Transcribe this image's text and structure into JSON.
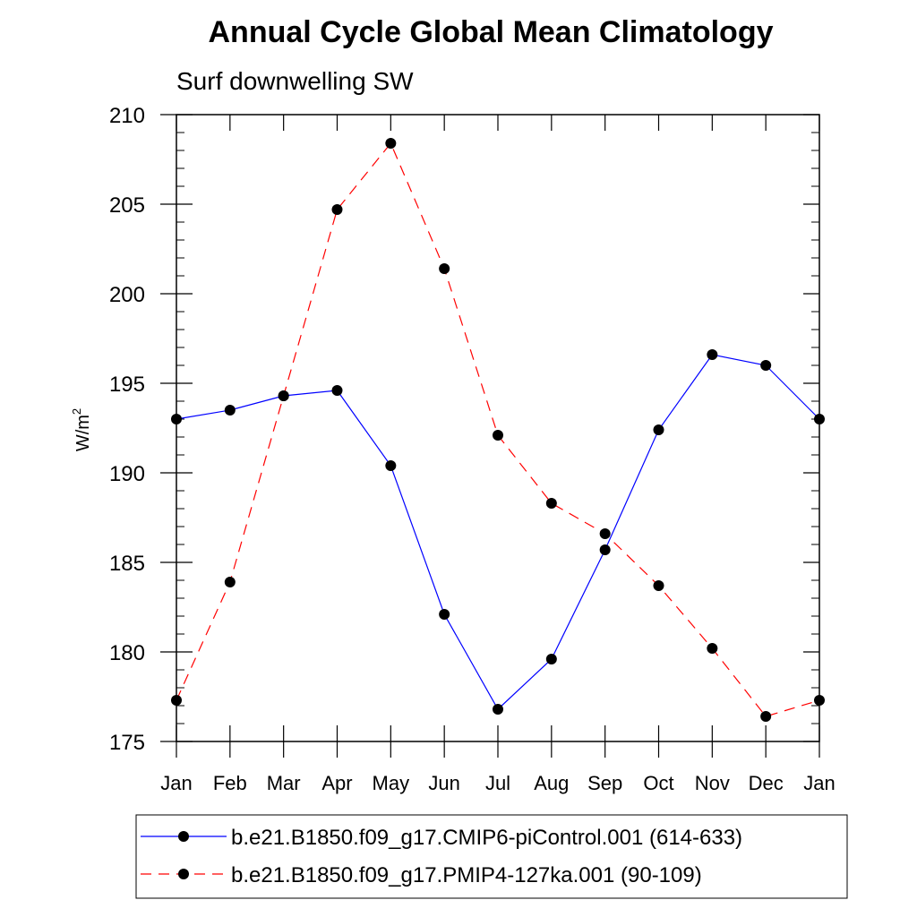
{
  "chart_data": {
    "type": "line",
    "title": "Annual Cycle Global Mean Climatology",
    "subtitle": "Surf downwelling SW",
    "ylabel": "W/m",
    "ylabel_sup": "2",
    "xlabel": "",
    "ylim": [
      175,
      210
    ],
    "yticks": [
      175,
      180,
      185,
      190,
      195,
      200,
      205,
      210
    ],
    "categories": [
      "Jan",
      "Feb",
      "Mar",
      "Apr",
      "May",
      "Jun",
      "Jul",
      "Aug",
      "Sep",
      "Oct",
      "Nov",
      "Dec",
      "Jan"
    ],
    "grid": false,
    "legend_position": "bottom",
    "series": [
      {
        "name": "b.e21.B1850.f09_g17.CMIP6-piControl.001 (614-633)",
        "color": "#0000ff",
        "dash": "solid",
        "marker": "filled-circle",
        "values": [
          193.0,
          193.5,
          194.3,
          194.6,
          190.4,
          182.1,
          176.8,
          179.6,
          185.7,
          192.4,
          196.6,
          196.0,
          193.0
        ]
      },
      {
        "name": "b.e21.B1850.f09_g17.PMIP4-127ka.001 (90-109)",
        "color": "#ff0000",
        "dash": "dashed",
        "marker": "filled-circle",
        "values": [
          177.3,
          183.9,
          194.3,
          204.7,
          208.4,
          201.4,
          192.1,
          188.3,
          186.6,
          183.7,
          180.2,
          176.4,
          177.3
        ]
      }
    ]
  }
}
